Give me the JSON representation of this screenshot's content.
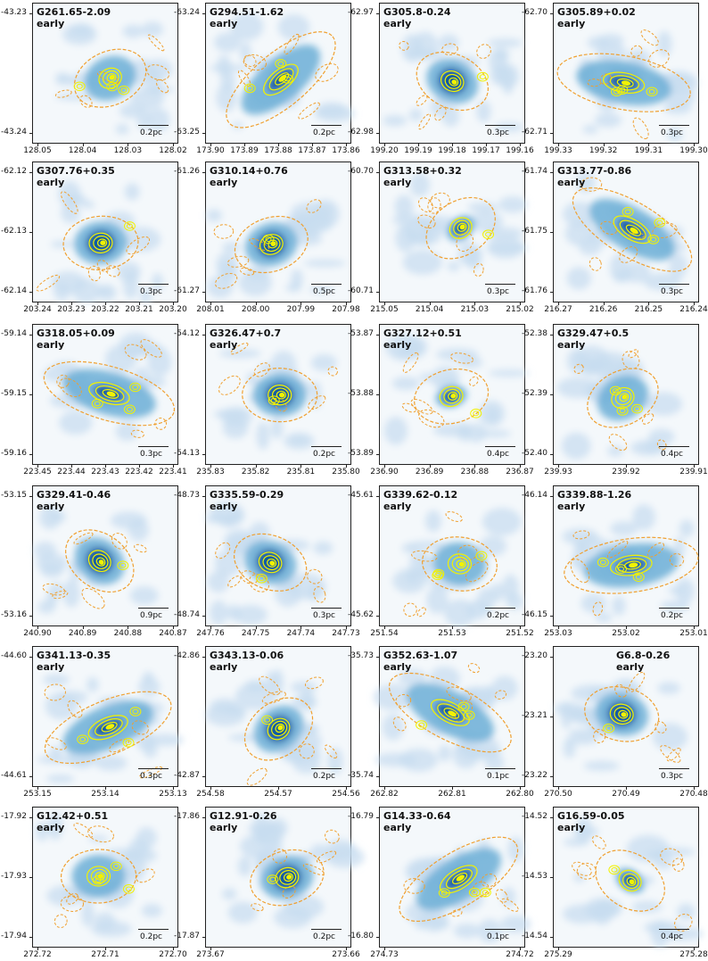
{
  "panels": [
    {
      "title": "G261.65-2.09",
      "stage": "early",
      "scale": "0.2pc",
      "ytick_side": "left",
      "yticks": [
        "-43.23",
        "-43.24"
      ],
      "xticks": [
        "128.05",
        "128.04",
        "128.03",
        "128.02"
      ],
      "texture": "patchy"
    },
    {
      "title": "G294.51-1.62",
      "stage": "early",
      "scale": "0.2pc",
      "ytick_side": "left",
      "yticks": [
        "-63.24",
        "-63.25"
      ],
      "xticks": [
        "173.90",
        "173.89",
        "173.88",
        "173.87",
        "173.86"
      ],
      "texture": "elongated"
    },
    {
      "title": "G305.8-0.24",
      "stage": "early",
      "scale": "0.3pc",
      "ytick_side": "left",
      "yticks": [
        "-62.97",
        "-62.98"
      ],
      "xticks": [
        "199.20",
        "199.19",
        "199.18",
        "199.17",
        "199.16"
      ],
      "texture": "core"
    },
    {
      "title": "G305.89+0.02",
      "stage": "early",
      "scale": "0.3pc",
      "ytick_side": "left",
      "yticks": [
        "-62.70",
        "-62.71"
      ],
      "xticks": [
        "199.33",
        "199.32",
        "199.31",
        "199.30"
      ],
      "texture": "elongated"
    },
    {
      "title": "G307.76+0.35",
      "stage": "early",
      "scale": "0.3pc",
      "ytick_side": "left",
      "yticks": [
        "-62.12",
        "-62.13",
        "-62.14"
      ],
      "xticks": [
        "203.24",
        "203.23",
        "203.22",
        "203.21",
        "203.20"
      ],
      "texture": "core"
    },
    {
      "title": "G310.14+0.76",
      "stage": "early",
      "scale": "0.5pc",
      "ytick_side": "left",
      "yticks": [
        "-61.26",
        "-61.27"
      ],
      "xticks": [
        "208.01",
        "208.00",
        "207.99",
        "207.98"
      ],
      "texture": "core"
    },
    {
      "title": "G313.58+0.32",
      "stage": "early",
      "scale": "0.3pc",
      "ytick_side": "left",
      "yticks": [
        "-60.70",
        "-60.71"
      ],
      "xticks": [
        "215.05",
        "215.04",
        "215.03",
        "215.02"
      ],
      "texture": "small"
    },
    {
      "title": "G313.77-0.86",
      "stage": "early",
      "scale": "0.3pc",
      "ytick_side": "left",
      "yticks": [
        "-61.74",
        "-61.75",
        "-61.76"
      ],
      "xticks": [
        "216.27",
        "216.26",
        "216.25",
        "216.24"
      ],
      "texture": "elongated"
    },
    {
      "title": "G318.05+0.09",
      "stage": "early",
      "scale": "0.3pc",
      "ytick_side": "left",
      "yticks": [
        "-59.14",
        "-59.15",
        "-59.16"
      ],
      "xticks": [
        "223.45",
        "223.44",
        "223.43",
        "223.42",
        "223.41"
      ],
      "texture": "elongated"
    },
    {
      "title": "G326.47+0.7",
      "stage": "early",
      "scale": "0.2pc",
      "ytick_side": "left",
      "yticks": [
        "-54.12",
        "-54.13"
      ],
      "xticks": [
        "235.83",
        "235.82",
        "235.81",
        "235.80"
      ],
      "texture": "core"
    },
    {
      "title": "G327.12+0.51",
      "stage": "early",
      "scale": "0.4pc",
      "ytick_side": "left",
      "yticks": [
        "-53.87",
        "-53.88",
        "-53.89"
      ],
      "xticks": [
        "236.90",
        "236.89",
        "236.88",
        "236.87"
      ],
      "texture": "small"
    },
    {
      "title": "G329.47+0.5",
      "stage": "early",
      "scale": "0.4pc",
      "ytick_side": "left",
      "yticks": [
        "-52.38",
        "-52.39",
        "-52.40"
      ],
      "xticks": [
        "239.93",
        "239.92",
        "239.91"
      ],
      "texture": "patchy"
    },
    {
      "title": "G329.41-0.46",
      "stage": "early",
      "scale": "0.9pc",
      "ytick_side": "left",
      "yticks": [
        "-53.15",
        "-53.16"
      ],
      "xticks": [
        "240.90",
        "240.89",
        "240.88",
        "240.87"
      ],
      "texture": "core"
    },
    {
      "title": "G335.59-0.29",
      "stage": "early",
      "scale": "0.3pc",
      "ytick_side": "left",
      "yticks": [
        "-48.73",
        "-48.74"
      ],
      "xticks": [
        "247.76",
        "247.75",
        "247.74",
        "247.73"
      ],
      "texture": "core"
    },
    {
      "title": "G339.62-0.12",
      "stage": "early",
      "scale": "0.2pc",
      "ytick_side": "left",
      "yticks": [
        "-45.61",
        "-45.62"
      ],
      "xticks": [
        "251.54",
        "251.53",
        "251.52"
      ],
      "texture": "patchy"
    },
    {
      "title": "G339.88-1.26",
      "stage": "early",
      "scale": "0.2pc",
      "ytick_side": "left",
      "yticks": [
        "-46.14",
        "-46.15"
      ],
      "xticks": [
        "253.03",
        "253.02",
        "253.01"
      ],
      "texture": "elongated"
    },
    {
      "title": "G341.13-0.35",
      "stage": "early",
      "scale": "0.3pc",
      "ytick_side": "left",
      "yticks": [
        "-44.60",
        "-44.61"
      ],
      "xticks": [
        "253.15",
        "253.14",
        "253.13"
      ],
      "texture": "elongated"
    },
    {
      "title": "G343.13-0.06",
      "stage": "early",
      "scale": "0.2pc",
      "ytick_side": "left",
      "yticks": [
        "-42.86",
        "-42.87"
      ],
      "xticks": [
        "254.58",
        "254.57",
        "254.56"
      ],
      "texture": "core"
    },
    {
      "title": "G352.63-1.07",
      "stage": "early",
      "scale": "0.1pc",
      "ytick_side": "left",
      "yticks": [
        "-35.73",
        "-35.74"
      ],
      "xticks": [
        "262.82",
        "262.81",
        "262.80"
      ],
      "texture": "elongated"
    },
    {
      "title": "G6.8-0.26",
      "stage": "early",
      "scale": "0.3pc",
      "ytick_side": "left",
      "yticks": [
        "-23.20",
        "-23.21",
        "-23.22"
      ],
      "xticks": [
        "270.50",
        "270.49",
        "270.48"
      ],
      "texture": "core"
    },
    {
      "title": "G12.42+0.51",
      "stage": "early",
      "scale": "0.2pc",
      "ytick_side": "left",
      "yticks": [
        "-17.92",
        "-17.93",
        "-17.94"
      ],
      "xticks": [
        "272.72",
        "272.71",
        "272.70"
      ],
      "texture": "patchy"
    },
    {
      "title": "G12.91-0.26",
      "stage": "early",
      "scale": "0.2pc",
      "ytick_side": "left",
      "yticks": [
        "-17.86",
        "-17.87"
      ],
      "xticks": [
        "273.67",
        "273.66"
      ],
      "texture": "core"
    },
    {
      "title": "G14.33-0.64",
      "stage": "early",
      "scale": "0.1pc",
      "ytick_side": "left",
      "yticks": [
        "-16.79",
        "-16.80"
      ],
      "xticks": [
        "274.73",
        "274.72"
      ],
      "texture": "elongated"
    },
    {
      "title": "G16.59-0.05",
      "stage": "early",
      "scale": "0.4pc",
      "ytick_side": "left",
      "yticks": [
        "-14.52",
        "-14.53",
        "-14.54"
      ],
      "xticks": [
        "275.29",
        "275.28"
      ],
      "texture": "small"
    }
  ],
  "colors": {
    "background": "#f4f8fb",
    "dust_light": "#c6dbef",
    "dust_mid": "#6baed6",
    "dust_dark": "#08519c",
    "contour_yellow": "#f2f200",
    "ellipse_orange": "#f0a030"
  }
}
